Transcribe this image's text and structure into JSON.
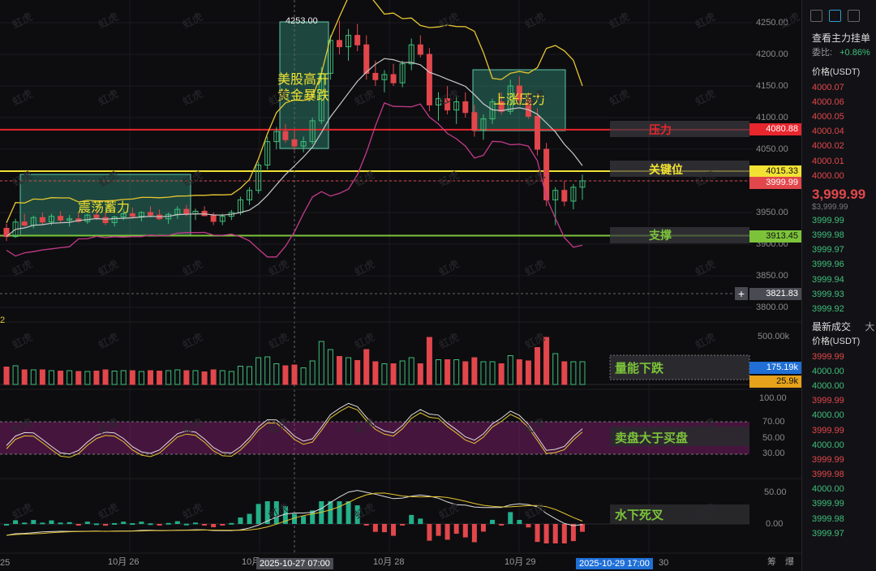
{
  "watermark": "虹虎",
  "annotations": {
    "us_open": "美股高开",
    "gold_crash": "黄金暴跌",
    "consolidation": "震荡蓄力",
    "upside_pressure": "上涨压力",
    "resistance": "压力",
    "key_level": "关键位",
    "support": "支撑",
    "volume_down": "量能下跌",
    "sell_over_buy": "卖盘大于买盘",
    "underwater_death_cross": "水下死叉"
  },
  "price_levels": {
    "resistance": "4080.88",
    "key_level": "4015.33",
    "current": "3999.99",
    "support": "3913.45",
    "crosshair": "3821.83",
    "peak": "4253.00"
  },
  "price_axis": [
    "4250.00",
    "4200.00",
    "4150.00",
    "4100.00",
    "4050.00",
    "3950.00",
    "3900.00",
    "3850.00",
    "3800.00"
  ],
  "volume_axis": {
    "max": "500.00k",
    "tag1": "175.19k",
    "tag2": "25.9k"
  },
  "osc_axis": [
    "100.00",
    "70.00",
    "50.00",
    "30.00"
  ],
  "osc_left_label": "2",
  "macd_axis": [
    "50.00",
    "0.00"
  ],
  "time_axis": {
    "left_partial": "25",
    "d26": "10月 26",
    "d27_partial": "10月",
    "d27_cursor": "2025-10-27 07:00",
    "d28": "10月 28",
    "d29": "10月 29",
    "d29_cursor": "2025-10-29 17:00",
    "d30_partial": "30",
    "corner1": "筹",
    "corner2": "爆"
  },
  "colors": {
    "up": "#3fbf7a",
    "down": "#e2474b",
    "resistance": "#e8262d",
    "key": "#f2e233",
    "support": "#7cc33a",
    "ma_yellow": "#e6c630",
    "ma_white": "#c9c9c9",
    "boll_pink": "#c43a8a"
  },
  "right_panel": {
    "title": "查看主力挂单",
    "ratio_label": "委比:",
    "ratio_value": "+0.86%",
    "price_header": "价格(USDT)",
    "asks": [
      "4000.07",
      "4000.06",
      "4000.05",
      "4000.04",
      "4000.02",
      "4000.01",
      "4000.00"
    ],
    "last_price": "3,999.99",
    "last_price_sub": "$3,999.99",
    "bids": [
      "3999.99",
      "3999.98",
      "3999.97",
      "3999.96",
      "3999.94",
      "3999.93",
      "3999.92"
    ],
    "trades_title": "最新成交",
    "trades_extra": "大",
    "trades_header": "价格(USDT)",
    "trades": [
      {
        "p": "3999.99",
        "s": "down"
      },
      {
        "p": "4000.00",
        "s": "up"
      },
      {
        "p": "4000.00",
        "s": "up"
      },
      {
        "p": "3999.99",
        "s": "down"
      },
      {
        "p": "4000.00",
        "s": "up"
      },
      {
        "p": "3999.99",
        "s": "down"
      },
      {
        "p": "4000.00",
        "s": "up"
      },
      {
        "p": "3999.99",
        "s": "down"
      },
      {
        "p": "3999.98",
        "s": "down"
      },
      {
        "p": "4000.00",
        "s": "up"
      },
      {
        "p": "3999.99",
        "s": "up"
      },
      {
        "p": "3999.98",
        "s": "up"
      },
      {
        "p": "3999.97",
        "s": "up"
      }
    ]
  },
  "chart_data": {
    "type": "candlestick",
    "ohlc": [
      [
        3925,
        3932,
        3905,
        3912
      ],
      [
        3912,
        3940,
        3910,
        3935
      ],
      [
        3935,
        3948,
        3928,
        3930
      ],
      [
        3930,
        3945,
        3925,
        3942
      ],
      [
        3942,
        3950,
        3930,
        3935
      ],
      [
        3935,
        3948,
        3930,
        3944
      ],
      [
        3944,
        3952,
        3935,
        3938
      ],
      [
        3938,
        3946,
        3928,
        3940
      ],
      [
        3940,
        3950,
        3934,
        3936
      ],
      [
        3936,
        3948,
        3932,
        3946
      ],
      [
        3946,
        3955,
        3938,
        3942
      ],
      [
        3942,
        3950,
        3930,
        3934
      ],
      [
        3934,
        3945,
        3928,
        3943
      ],
      [
        3943,
        3956,
        3938,
        3948
      ],
      [
        3948,
        3958,
        3940,
        3944
      ],
      [
        3944,
        3952,
        3936,
        3950
      ],
      [
        3950,
        3960,
        3942,
        3946
      ],
      [
        3946,
        3955,
        3938,
        3940
      ],
      [
        3940,
        3950,
        3932,
        3947
      ],
      [
        3947,
        3960,
        3940,
        3955
      ],
      [
        3955,
        3962,
        3944,
        3948
      ],
      [
        3948,
        3956,
        3938,
        3952
      ],
      [
        3952,
        3960,
        3945,
        3945
      ],
      [
        3945,
        3950,
        3930,
        3936
      ],
      [
        3936,
        3948,
        3930,
        3944
      ],
      [
        3944,
        3954,
        3938,
        3950
      ],
      [
        3950,
        3975,
        3946,
        3970
      ],
      [
        3970,
        3990,
        3962,
        3985
      ],
      [
        3985,
        4030,
        3980,
        4025
      ],
      [
        4025,
        4070,
        4018,
        4062
      ],
      [
        4062,
        4085,
        4050,
        4078
      ],
      [
        4078,
        4090,
        4060,
        4065
      ],
      [
        4065,
        4080,
        4048,
        4055
      ],
      [
        4055,
        4070,
        4045,
        4062
      ],
      [
        4062,
        4100,
        4058,
        4095
      ],
      [
        4095,
        4180,
        4090,
        4170
      ],
      [
        4170,
        4230,
        4160,
        4222
      ],
      [
        4222,
        4253,
        4200,
        4212
      ],
      [
        4212,
        4240,
        4190,
        4230
      ],
      [
        4230,
        4248,
        4205,
        4215
      ],
      [
        4215,
        4230,
        4160,
        4170
      ],
      [
        4170,
        4190,
        4150,
        4160
      ],
      [
        4160,
        4175,
        4140,
        4168
      ],
      [
        4168,
        4185,
        4150,
        4155
      ],
      [
        4155,
        4190,
        4148,
        4185
      ],
      [
        4185,
        4225,
        4175,
        4215
      ],
      [
        4215,
        4230,
        4195,
        4200
      ],
      [
        4200,
        4210,
        4110,
        4120
      ],
      [
        4120,
        4140,
        4095,
        4130
      ],
      [
        4130,
        4150,
        4105,
        4112
      ],
      [
        4112,
        4135,
        4090,
        4125
      ],
      [
        4125,
        4140,
        4100,
        4108
      ],
      [
        4108,
        4120,
        4070,
        4080
      ],
      [
        4080,
        4105,
        4065,
        4098
      ],
      [
        4098,
        4130,
        4090,
        4125
      ],
      [
        4125,
        4140,
        4105,
        4110
      ],
      [
        4110,
        4160,
        4105,
        4150
      ],
      [
        4150,
        4165,
        4120,
        4128
      ],
      [
        4128,
        4140,
        4098,
        4102
      ],
      [
        4102,
        4115,
        4040,
        4050
      ],
      [
        4050,
        4060,
        3960,
        3970
      ],
      [
        3970,
        3990,
        3930,
        3985
      ],
      [
        3985,
        4000,
        3960,
        3968
      ],
      [
        3968,
        3995,
        3955,
        3990
      ],
      [
        3990,
        4010,
        3970,
        4000
      ]
    ],
    "bollinger": "upper/middle/lower bands overlay",
    "levels": [
      4080.88,
      4015.33,
      3913.45
    ]
  }
}
